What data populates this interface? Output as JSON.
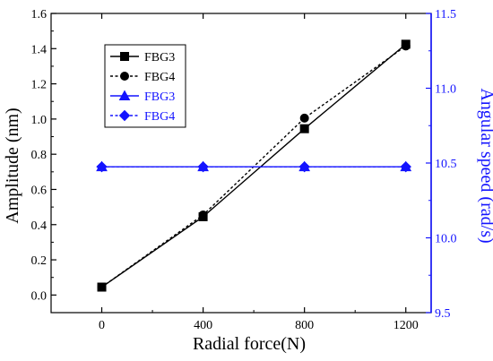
{
  "chart_data": {
    "type": "line",
    "xlabel": "Radial force(N)",
    "ylabel_left": "Amplitude (nm)",
    "ylabel_right": "Angular speed (rad/s)",
    "x": [
      0,
      400,
      800,
      1200
    ],
    "x_ticks": [
      0,
      400,
      800,
      1200
    ],
    "xlim": [
      -200,
      1300
    ],
    "ylim_left": [
      -0.1,
      1.6
    ],
    "ylim_right": [
      9.5,
      11.5
    ],
    "y_ticks_left": [
      0.0,
      0.2,
      0.4,
      0.6,
      0.8,
      1.0,
      1.2,
      1.4,
      1.6
    ],
    "y_ticks_left_labels": [
      "0.0",
      "0.2",
      "0.4",
      "0.6",
      "0.8",
      "1.0",
      "1.2",
      "1.4",
      "1.6"
    ],
    "y_ticks_right": [
      9.5,
      10.0,
      10.5,
      11.0,
      11.5
    ],
    "y_ticks_right_labels": [
      "9.5",
      "10.0",
      "10.5",
      "11.0",
      "11.5"
    ],
    "legend_position": "top-left",
    "grid": false,
    "colors": {
      "left_axis": "#000000",
      "right_axis": "#1414ff"
    },
    "series": [
      {
        "name": "FBG3",
        "axis": "left",
        "values": [
          0.045,
          0.445,
          0.945,
          1.425
        ],
        "marker": "square",
        "line": "solid",
        "color": "#000000"
      },
      {
        "name": "FBG4",
        "axis": "left",
        "values": [
          0.045,
          0.455,
          1.005,
          1.415
        ],
        "marker": "circle",
        "line": "dotted",
        "color": "#000000"
      },
      {
        "name": "FBG3",
        "axis": "right",
        "values": [
          10.475,
          10.475,
          10.475,
          10.475
        ],
        "marker": "triangle",
        "line": "solid",
        "color": "#1414ff"
      },
      {
        "name": "FBG4",
        "axis": "right",
        "values": [
          10.475,
          10.475,
          10.475,
          10.475
        ],
        "marker": "diamond",
        "line": "dotted",
        "color": "#1414ff"
      }
    ]
  }
}
